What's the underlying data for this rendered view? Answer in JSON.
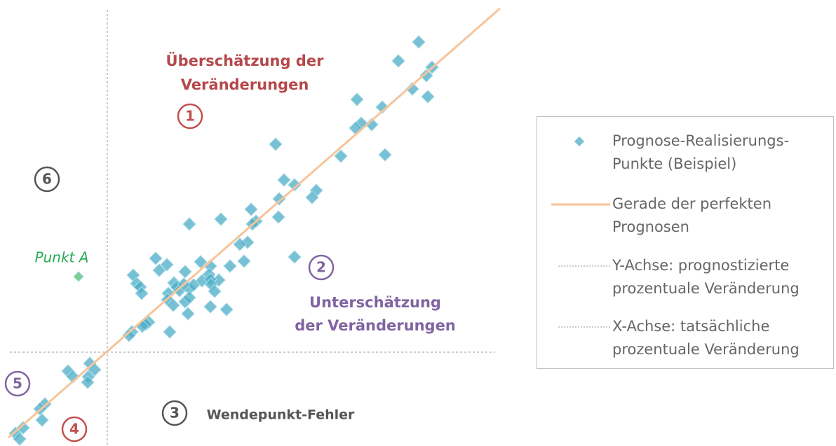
{
  "chart_data": {
    "type": "scatter",
    "xlim": [
      -153,
      557
    ],
    "ylim": [
      -134,
      503
    ],
    "series": [
      {
        "name": "Prognose-Realisierungs-Punkte (Beispiel)",
        "color": "#4bacc6",
        "x": [
          444,
          415,
          463,
          455,
          435,
          457,
          356,
          392,
          362,
          354,
          377,
          240,
          333,
          396,
          252,
          267,
          298,
          292,
          245,
          205,
          212,
          207,
          162,
          244,
          117,
          200,
          189,
          69,
          133,
          147,
          175,
          195,
          267,
          85,
          74,
          111,
          37,
          145,
          42,
          47,
          95,
          99,
          103,
          117,
          123,
          109,
          135,
          159,
          147,
          148,
          87,
          49,
          153,
          86,
          111,
          117,
          147,
          170,
          115,
          94,
          59,
          55,
          50,
          35,
          31,
          89,
          -25,
          -18,
          -56,
          -49,
          -27,
          -28,
          -89,
          -96,
          -93,
          -120,
          -131,
          -125
        ],
        "values": [
          443,
          416,
          407,
          395,
          376,
          365,
          361,
          350,
          327,
          320,
          325,
          297,
          280,
          282,
          246,
          239,
          231,
          221,
          219,
          204,
          187,
          183,
          190,
          193,
          183,
          157,
          154,
          134,
          129,
          123,
          123,
          130,
          136,
          125,
          117,
          115,
          110,
          111,
          98,
          93,
          99,
          93,
          88,
          91,
          96,
          97,
          102,
          103,
          104,
          97,
          84,
          84,
          87,
          75,
          72,
          78,
          65,
          61,
          55,
          67,
          43,
          40,
          37,
          29,
          24,
          29,
          -16,
          -25,
          -27,
          -35,
          -35,
          -43,
          -74,
          -81,
          -97,
          -108,
          -116,
          -124
        ]
      },
      {
        "name": "Gerade der perfekten Prognosen",
        "color": "#f6c49a",
        "type": "line",
        "x": [
          -141,
          560
        ],
        "values": [
          -122,
          491
        ]
      },
      {
        "name": "Punkt A",
        "color": "#4fbf6f",
        "x": [
          -41
        ],
        "values": [
          108
        ]
      }
    ],
    "reference_lines": [
      {
        "name": "Y-Achse: prognostizierte prozentuale Veränderung",
        "x": 0
      },
      {
        "name": "X-Achse: tatsächliche prozentuale Veränderung",
        "y": 0
      }
    ],
    "annotations": [
      {
        "text": "1",
        "color": "#c0504d",
        "circled": true
      },
      {
        "text": "Überschätzung der",
        "color": "#b5474a"
      },
      {
        "text": "Veränderungen",
        "color": "#b5474a"
      },
      {
        "text": "2",
        "color": "#8064a2",
        "circled": true
      },
      {
        "text": "Unterschätzung",
        "color": "#8064a2"
      },
      {
        "text": "der Veränderungen",
        "color": "#8064a2"
      },
      {
        "text": "6",
        "color": "#555555",
        "circled": true
      },
      {
        "text": "5",
        "color": "#8064a2",
        "circled": true
      },
      {
        "text": "4",
        "color": "#c0504d",
        "circled": true
      },
      {
        "text": "3",
        "color": "#555555",
        "circled": true
      },
      {
        "text": "Wendepunkt-Fehler",
        "color": "#555555"
      }
    ]
  }
}
